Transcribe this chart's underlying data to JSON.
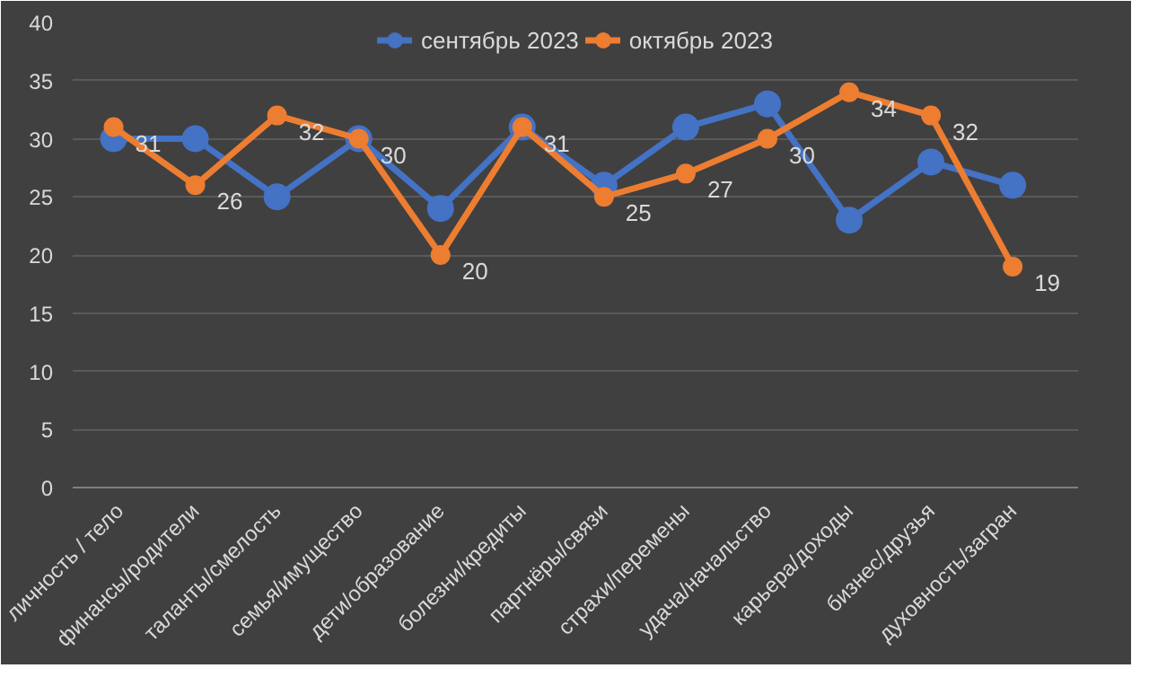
{
  "chart_data": {
    "type": "line",
    "categories": [
      "личность / тело",
      "финансы/родители",
      "таланты/смелость",
      "семья/имущество",
      "дети/образование",
      "болезни/кредиты",
      "партнёры/связи",
      "страхи/перемены",
      "удача/начальство",
      "карьера/доходы",
      "бизнес/друзья",
      "духовность/загран"
    ],
    "series": [
      {
        "name": "сентябрь 2023",
        "color": "#4472c4",
        "values": [
          30,
          30,
          25,
          30,
          24,
          31,
          26,
          31,
          33,
          23,
          28,
          26
        ]
      },
      {
        "name": "октябрь 2023",
        "color": "#ed7d31",
        "values": [
          31,
          26,
          32,
          30,
          20,
          31,
          25,
          27,
          30,
          34,
          32,
          19
        ],
        "value_labels": [
          "31",
          "26",
          "32",
          "30",
          "20",
          "31",
          "25",
          "27",
          "30",
          "34",
          "32",
          "19"
        ]
      }
    ],
    "ylim": [
      0,
      40
    ],
    "yticks": [
      0,
      5,
      10,
      15,
      20,
      25,
      30,
      35,
      40
    ],
    "grid": "y",
    "legend": "top",
    "marker": "circle",
    "line_style": "solid"
  }
}
